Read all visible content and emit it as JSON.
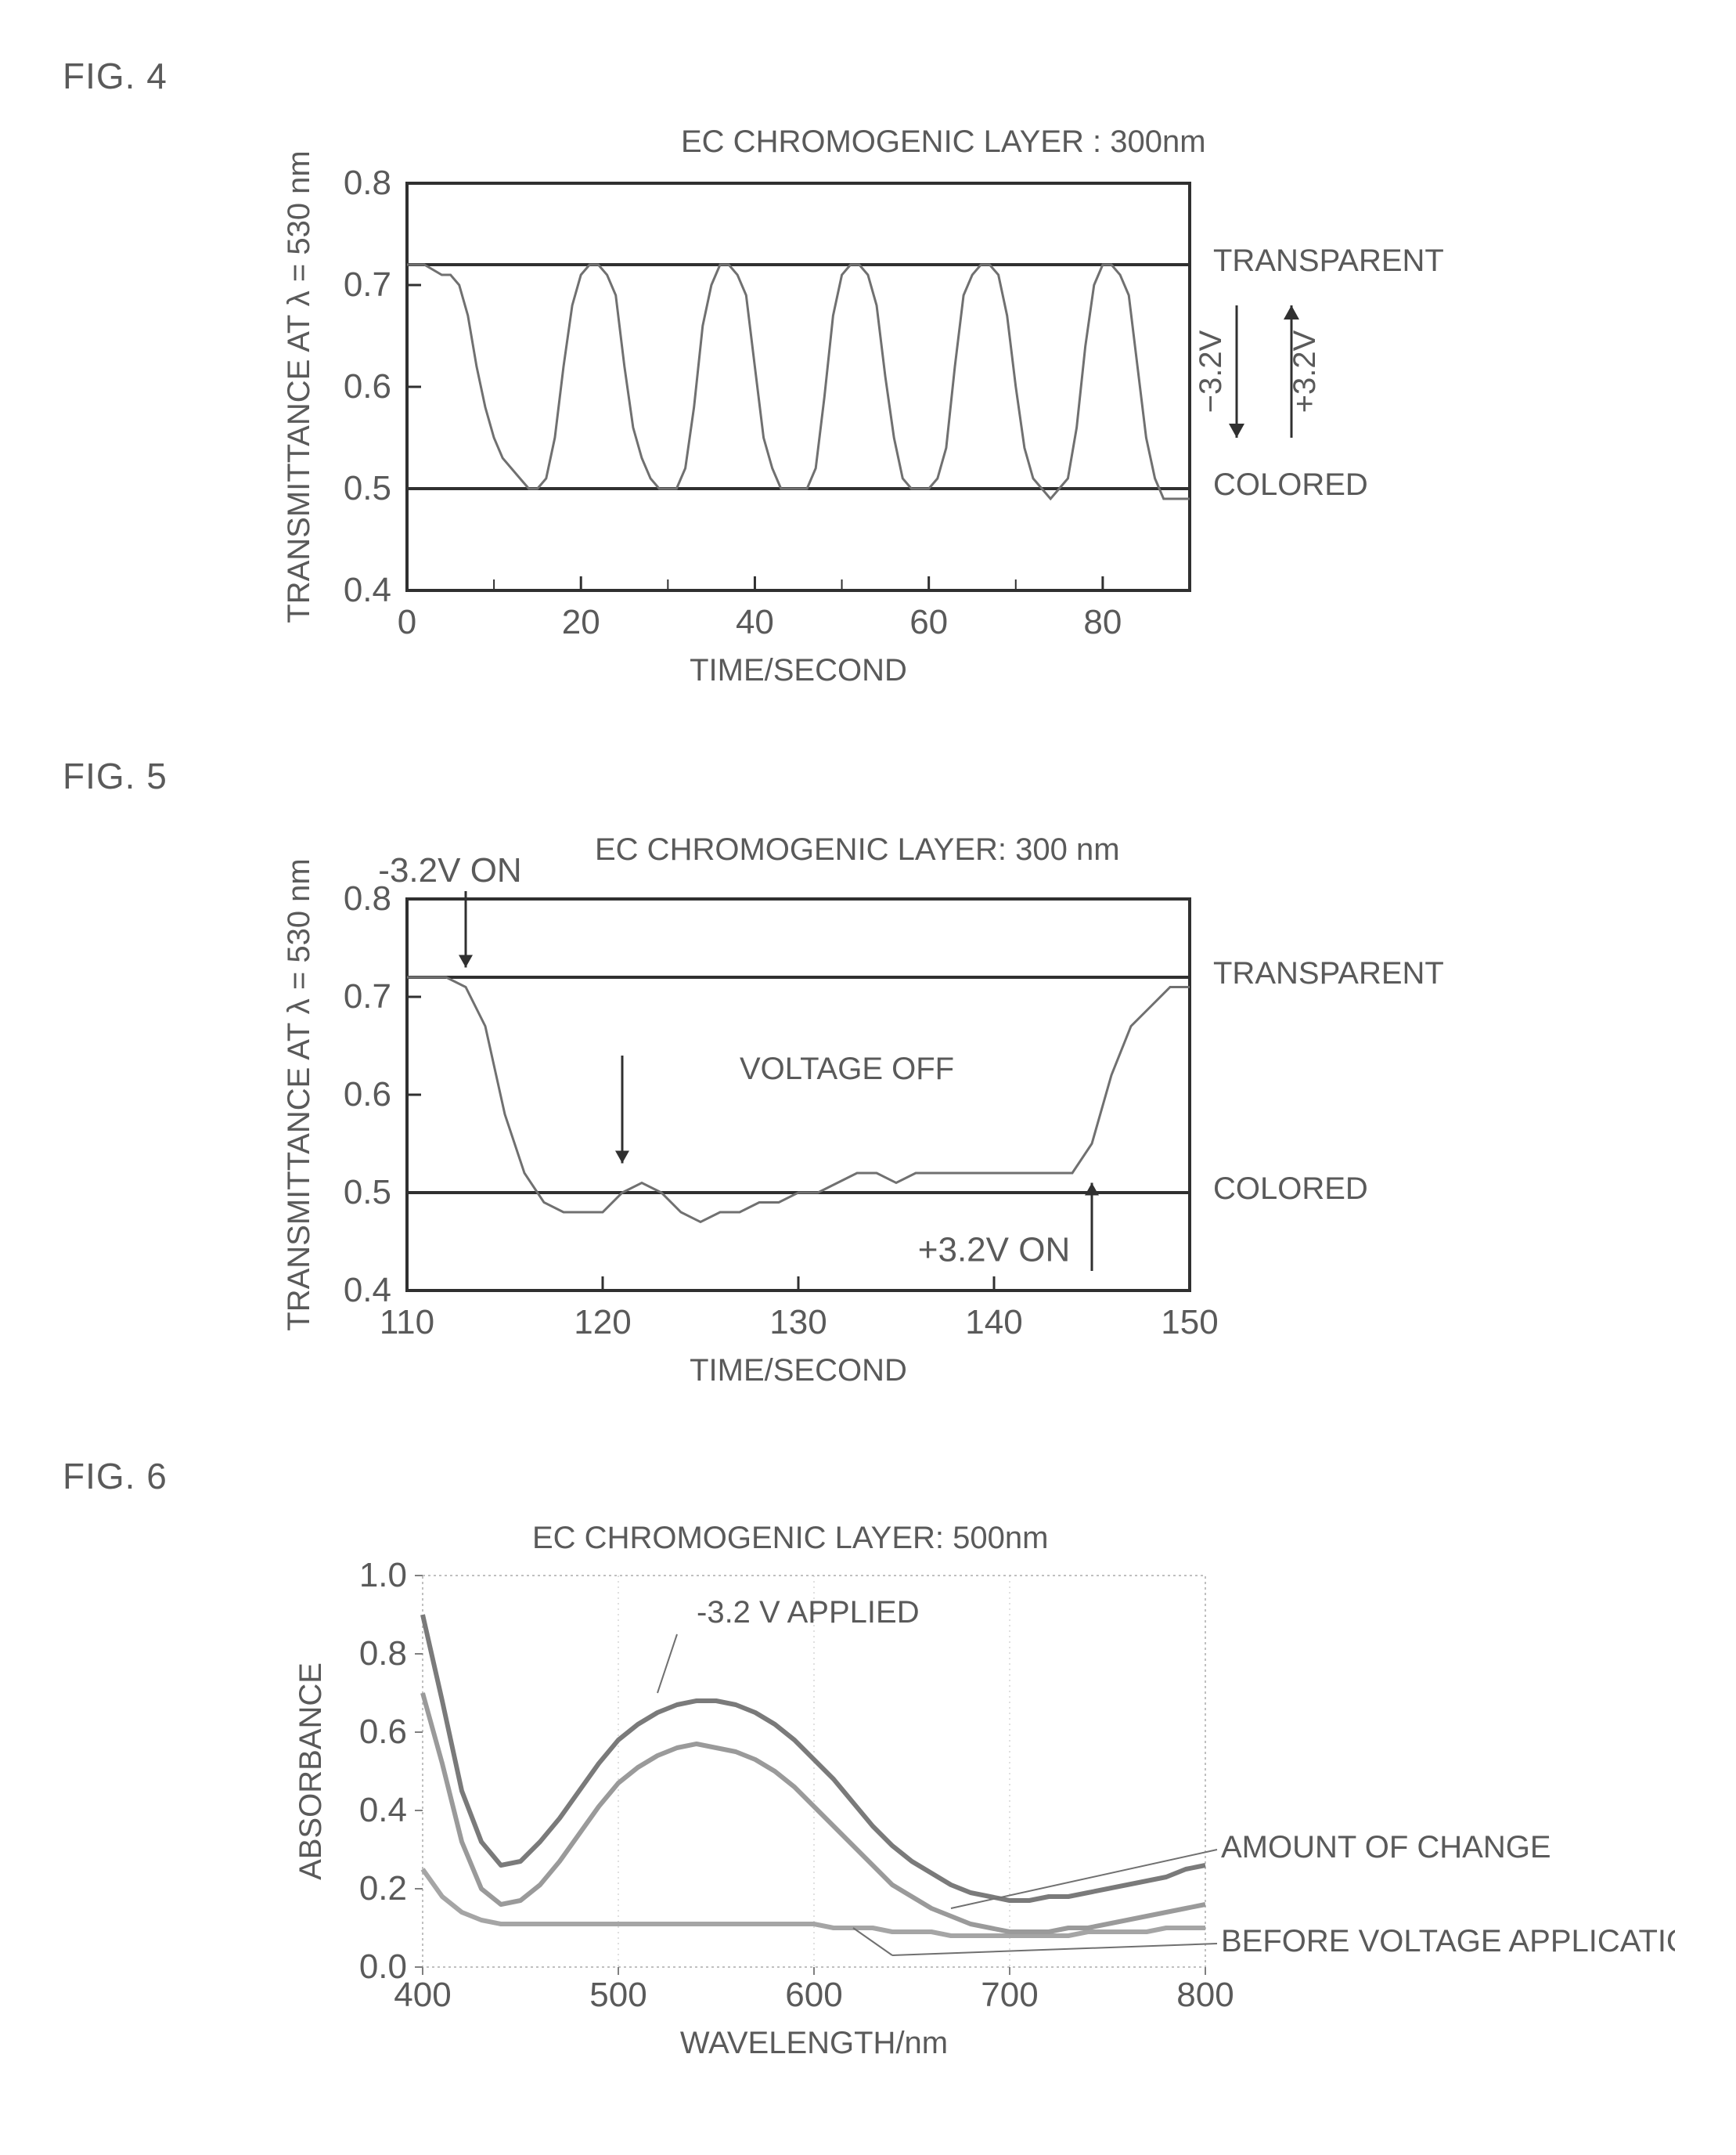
{
  "fig4": {
    "label": "FIG. 4",
    "type": "line",
    "title": "EC CHROMOGENIC LAYER : 300nm",
    "xlabel": "TIME/SECOND",
    "ylabel": "TRANSMITTANCE AT λ = 530 nm",
    "xlim": [
      0,
      90
    ],
    "ylim": [
      0.4,
      0.8
    ],
    "xticks": [
      0,
      20,
      40,
      60,
      80
    ],
    "yticks": [
      0.4,
      0.5,
      0.6,
      0.7,
      0.8
    ],
    "transparent_line_y": 0.72,
    "colored_line_y": 0.5,
    "transparent_label": "TRANSPARENT",
    "colored_label": "COLORED",
    "voltage_up_label": "+3.2V",
    "voltage_down_label": "−3.2V",
    "line_color": "#707070",
    "refline_color": "#303030",
    "axis_color": "#303030",
    "background_color": "#ffffff",
    "line_width": 3,
    "refline_width": 4,
    "series": [
      [
        0,
        0.72
      ],
      [
        2,
        0.72
      ],
      [
        4,
        0.71
      ],
      [
        5,
        0.71
      ],
      [
        6,
        0.7
      ],
      [
        7,
        0.67
      ],
      [
        8,
        0.62
      ],
      [
        9,
        0.58
      ],
      [
        10,
        0.55
      ],
      [
        11,
        0.53
      ],
      [
        12,
        0.52
      ],
      [
        13,
        0.51
      ],
      [
        14,
        0.5
      ],
      [
        15,
        0.5
      ],
      [
        16,
        0.51
      ],
      [
        17,
        0.55
      ],
      [
        18,
        0.62
      ],
      [
        19,
        0.68
      ],
      [
        20,
        0.71
      ],
      [
        21,
        0.72
      ],
      [
        22,
        0.72
      ],
      [
        23,
        0.71
      ],
      [
        24,
        0.69
      ],
      [
        25,
        0.62
      ],
      [
        26,
        0.56
      ],
      [
        27,
        0.53
      ],
      [
        28,
        0.51
      ],
      [
        29,
        0.5
      ],
      [
        30,
        0.5
      ],
      [
        31,
        0.5
      ],
      [
        32,
        0.52
      ],
      [
        33,
        0.58
      ],
      [
        34,
        0.66
      ],
      [
        35,
        0.7
      ],
      [
        36,
        0.72
      ],
      [
        37,
        0.72
      ],
      [
        38,
        0.71
      ],
      [
        39,
        0.69
      ],
      [
        40,
        0.62
      ],
      [
        41,
        0.55
      ],
      [
        42,
        0.52
      ],
      [
        43,
        0.5
      ],
      [
        44,
        0.5
      ],
      [
        45,
        0.5
      ],
      [
        46,
        0.5
      ],
      [
        47,
        0.52
      ],
      [
        48,
        0.59
      ],
      [
        49,
        0.67
      ],
      [
        50,
        0.71
      ],
      [
        51,
        0.72
      ],
      [
        52,
        0.72
      ],
      [
        53,
        0.71
      ],
      [
        54,
        0.68
      ],
      [
        55,
        0.61
      ],
      [
        56,
        0.55
      ],
      [
        57,
        0.51
      ],
      [
        58,
        0.5
      ],
      [
        59,
        0.5
      ],
      [
        60,
        0.5
      ],
      [
        61,
        0.51
      ],
      [
        62,
        0.54
      ],
      [
        63,
        0.62
      ],
      [
        64,
        0.69
      ],
      [
        65,
        0.71
      ],
      [
        66,
        0.72
      ],
      [
        67,
        0.72
      ],
      [
        68,
        0.71
      ],
      [
        69,
        0.67
      ],
      [
        70,
        0.6
      ],
      [
        71,
        0.54
      ],
      [
        72,
        0.51
      ],
      [
        73,
        0.5
      ],
      [
        74,
        0.49
      ],
      [
        75,
        0.5
      ],
      [
        76,
        0.51
      ],
      [
        77,
        0.56
      ],
      [
        78,
        0.64
      ],
      [
        79,
        0.7
      ],
      [
        80,
        0.72
      ],
      [
        81,
        0.72
      ],
      [
        82,
        0.71
      ],
      [
        83,
        0.69
      ],
      [
        84,
        0.62
      ],
      [
        85,
        0.55
      ],
      [
        86,
        0.51
      ],
      [
        87,
        0.49
      ],
      [
        88,
        0.49
      ],
      [
        89,
        0.49
      ],
      [
        90,
        0.49
      ]
    ],
    "title_fontsize": 40,
    "axis_fontsize": 40
  },
  "fig5": {
    "label": "FIG. 5",
    "type": "line",
    "title": "EC CHROMOGENIC LAYER: 300 nm",
    "xlabel": "TIME/SECOND",
    "ylabel": "TRANSMITTANCE AT λ = 530 nm",
    "xlim": [
      110,
      150
    ],
    "ylim": [
      0.4,
      0.8
    ],
    "xticks": [
      110,
      120,
      130,
      140,
      150
    ],
    "yticks": [
      0.4,
      0.5,
      0.6,
      0.7,
      0.8
    ],
    "transparent_line_y": 0.72,
    "colored_line_y": 0.5,
    "transparent_label": "TRANSPARENT",
    "colored_label": "COLORED",
    "annot_on_neg": "-3.2V ON",
    "annot_voltage_off": "VOLTAGE OFF",
    "annot_on_pos": "+3.2V ON",
    "line_color": "#707070",
    "refline_color": "#303030",
    "axis_color": "#303030",
    "background_color": "#ffffff",
    "line_width": 3,
    "refline_width": 4,
    "series": [
      [
        110,
        0.72
      ],
      [
        111,
        0.72
      ],
      [
        112,
        0.72
      ],
      [
        113,
        0.71
      ],
      [
        114,
        0.67
      ],
      [
        115,
        0.58
      ],
      [
        116,
        0.52
      ],
      [
        117,
        0.49
      ],
      [
        118,
        0.48
      ],
      [
        119,
        0.48
      ],
      [
        120,
        0.48
      ],
      [
        121,
        0.5
      ],
      [
        122,
        0.51
      ],
      [
        123,
        0.5
      ],
      [
        124,
        0.48
      ],
      [
        125,
        0.47
      ],
      [
        126,
        0.48
      ],
      [
        127,
        0.48
      ],
      [
        128,
        0.49
      ],
      [
        129,
        0.49
      ],
      [
        130,
        0.5
      ],
      [
        131,
        0.5
      ],
      [
        132,
        0.51
      ],
      [
        133,
        0.52
      ],
      [
        134,
        0.52
      ],
      [
        135,
        0.51
      ],
      [
        136,
        0.52
      ],
      [
        137,
        0.52
      ],
      [
        138,
        0.52
      ],
      [
        139,
        0.52
      ],
      [
        140,
        0.52
      ],
      [
        141,
        0.52
      ],
      [
        142,
        0.52
      ],
      [
        143,
        0.52
      ],
      [
        144,
        0.52
      ],
      [
        145,
        0.55
      ],
      [
        146,
        0.62
      ],
      [
        147,
        0.67
      ],
      [
        148,
        0.69
      ],
      [
        149,
        0.71
      ],
      [
        150,
        0.71
      ]
    ],
    "annot_neg_x": 113,
    "annot_off_x": 121,
    "annot_pos_x": 145
  },
  "fig6": {
    "label": "FIG. 6",
    "type": "line",
    "title": "EC CHROMOGENIC LAYER: 500nm",
    "xlabel": "WAVELENGTH/nm",
    "ylabel": "ABSORBANCE",
    "xlim": [
      400,
      800
    ],
    "ylim": [
      0.0,
      1.0
    ],
    "xticks": [
      400,
      500,
      600,
      700,
      800
    ],
    "yticks": [
      0.0,
      0.2,
      0.4,
      0.6,
      0.8,
      1.0
    ],
    "series_applied_label": "-3.2 V APPLIED",
    "series_change_label": "AMOUNT OF CHANGE",
    "series_before_label": "BEFORE VOLTAGE APPLICATION",
    "line_color_top": "#7a7a7a",
    "line_color_mid": "#9a9a9a",
    "line_color_low": "#a5a5a5",
    "axis_color": "#808080",
    "grid_color": "#c0c0c0",
    "background_color": "#ffffff",
    "line_width": 6,
    "series_applied": [
      [
        400,
        0.9
      ],
      [
        410,
        0.68
      ],
      [
        420,
        0.45
      ],
      [
        430,
        0.32
      ],
      [
        440,
        0.26
      ],
      [
        450,
        0.27
      ],
      [
        460,
        0.32
      ],
      [
        470,
        0.38
      ],
      [
        480,
        0.45
      ],
      [
        490,
        0.52
      ],
      [
        500,
        0.58
      ],
      [
        510,
        0.62
      ],
      [
        520,
        0.65
      ],
      [
        530,
        0.67
      ],
      [
        540,
        0.68
      ],
      [
        550,
        0.68
      ],
      [
        560,
        0.67
      ],
      [
        570,
        0.65
      ],
      [
        580,
        0.62
      ],
      [
        590,
        0.58
      ],
      [
        600,
        0.53
      ],
      [
        610,
        0.48
      ],
      [
        620,
        0.42
      ],
      [
        630,
        0.36
      ],
      [
        640,
        0.31
      ],
      [
        650,
        0.27
      ],
      [
        660,
        0.24
      ],
      [
        670,
        0.21
      ],
      [
        680,
        0.19
      ],
      [
        690,
        0.18
      ],
      [
        700,
        0.17
      ],
      [
        710,
        0.17
      ],
      [
        720,
        0.18
      ],
      [
        730,
        0.18
      ],
      [
        740,
        0.19
      ],
      [
        750,
        0.2
      ],
      [
        760,
        0.21
      ],
      [
        770,
        0.22
      ],
      [
        780,
        0.23
      ],
      [
        790,
        0.25
      ],
      [
        800,
        0.26
      ]
    ],
    "series_change": [
      [
        400,
        0.7
      ],
      [
        410,
        0.52
      ],
      [
        420,
        0.32
      ],
      [
        430,
        0.2
      ],
      [
        440,
        0.16
      ],
      [
        450,
        0.17
      ],
      [
        460,
        0.21
      ],
      [
        470,
        0.27
      ],
      [
        480,
        0.34
      ],
      [
        490,
        0.41
      ],
      [
        500,
        0.47
      ],
      [
        510,
        0.51
      ],
      [
        520,
        0.54
      ],
      [
        530,
        0.56
      ],
      [
        540,
        0.57
      ],
      [
        550,
        0.56
      ],
      [
        560,
        0.55
      ],
      [
        570,
        0.53
      ],
      [
        580,
        0.5
      ],
      [
        590,
        0.46
      ],
      [
        600,
        0.41
      ],
      [
        610,
        0.36
      ],
      [
        620,
        0.31
      ],
      [
        630,
        0.26
      ],
      [
        640,
        0.21
      ],
      [
        650,
        0.18
      ],
      [
        660,
        0.15
      ],
      [
        670,
        0.13
      ],
      [
        680,
        0.11
      ],
      [
        690,
        0.1
      ],
      [
        700,
        0.09
      ],
      [
        710,
        0.09
      ],
      [
        720,
        0.09
      ],
      [
        730,
        0.1
      ],
      [
        740,
        0.1
      ],
      [
        750,
        0.11
      ],
      [
        760,
        0.12
      ],
      [
        770,
        0.13
      ],
      [
        780,
        0.14
      ],
      [
        790,
        0.15
      ],
      [
        800,
        0.16
      ]
    ],
    "series_before": [
      [
        400,
        0.25
      ],
      [
        410,
        0.18
      ],
      [
        420,
        0.14
      ],
      [
        430,
        0.12
      ],
      [
        440,
        0.11
      ],
      [
        450,
        0.11
      ],
      [
        460,
        0.11
      ],
      [
        470,
        0.11
      ],
      [
        480,
        0.11
      ],
      [
        490,
        0.11
      ],
      [
        500,
        0.11
      ],
      [
        510,
        0.11
      ],
      [
        520,
        0.11
      ],
      [
        530,
        0.11
      ],
      [
        540,
        0.11
      ],
      [
        550,
        0.11
      ],
      [
        560,
        0.11
      ],
      [
        570,
        0.11
      ],
      [
        580,
        0.11
      ],
      [
        590,
        0.11
      ],
      [
        600,
        0.11
      ],
      [
        610,
        0.1
      ],
      [
        620,
        0.1
      ],
      [
        630,
        0.1
      ],
      [
        640,
        0.09
      ],
      [
        650,
        0.09
      ],
      [
        660,
        0.09
      ],
      [
        670,
        0.08
      ],
      [
        680,
        0.08
      ],
      [
        690,
        0.08
      ],
      [
        700,
        0.08
      ],
      [
        710,
        0.08
      ],
      [
        720,
        0.08
      ],
      [
        730,
        0.08
      ],
      [
        740,
        0.09
      ],
      [
        750,
        0.09
      ],
      [
        760,
        0.09
      ],
      [
        770,
        0.09
      ],
      [
        780,
        0.1
      ],
      [
        790,
        0.1
      ],
      [
        800,
        0.1
      ]
    ]
  }
}
